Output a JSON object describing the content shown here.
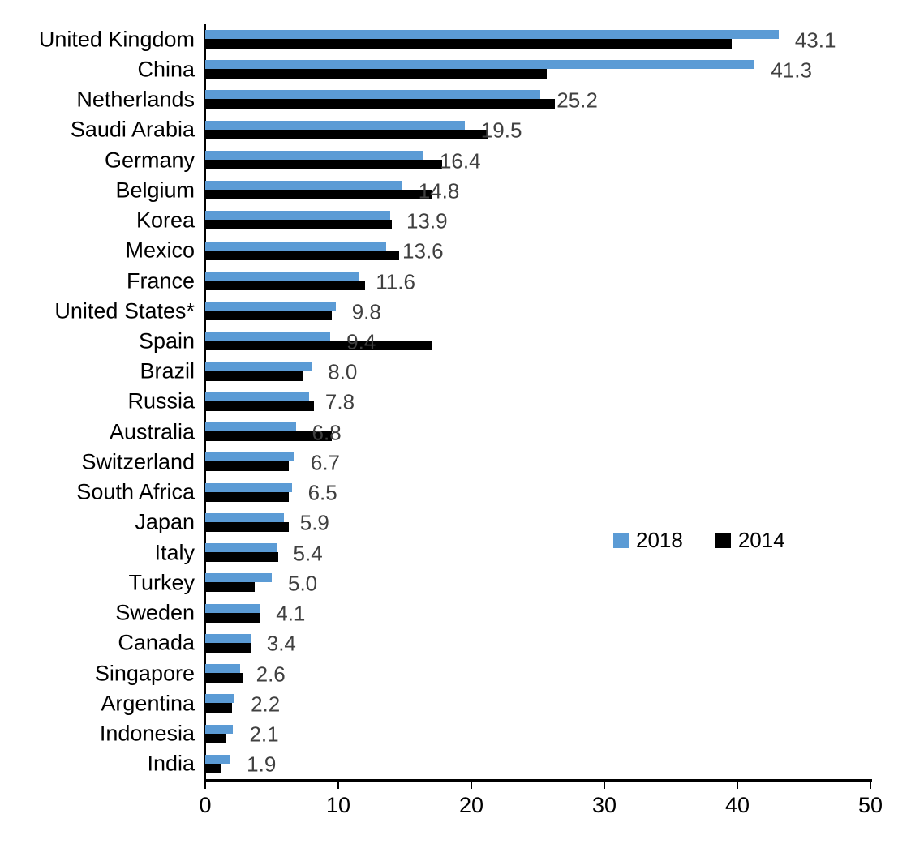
{
  "colors": {
    "series_2018": "#5B9BD5",
    "series_2014": "#000000",
    "value_label": "#404040",
    "axis": "#000000",
    "background": "#FFFFFF"
  },
  "legend": {
    "items": [
      {
        "label": "2018",
        "color": "#5B9BD5"
      },
      {
        "label": "2014",
        "color": "#000000"
      }
    ]
  },
  "chart_data": {
    "type": "bar",
    "orientation": "horizontal",
    "title": "",
    "xlabel": "",
    "ylabel": "",
    "xlim": [
      0,
      50
    ],
    "x_ticks": [
      0,
      10,
      20,
      30,
      40,
      50
    ],
    "grid": false,
    "legend_position": "middle-right",
    "categories": [
      "United Kingdom",
      "China",
      "Netherlands",
      "Saudi Arabia",
      "Germany",
      "Belgium",
      "Korea",
      "Mexico",
      "France",
      "United States*",
      "Spain",
      "Brazil",
      "Russia",
      "Australia",
      "Switzerland",
      "South Africa",
      "Japan",
      "Italy",
      "Turkey",
      "Sweden",
      "Canada",
      "Singapore",
      "Argentina",
      "Indonesia",
      "India"
    ],
    "series": [
      {
        "name": "2018",
        "color": "#5B9BD5",
        "values": [
          43.1,
          41.3,
          25.2,
          19.5,
          16.4,
          14.8,
          13.9,
          13.6,
          11.6,
          9.8,
          9.4,
          8.0,
          7.8,
          6.8,
          6.7,
          6.5,
          5.9,
          5.4,
          5.0,
          4.1,
          3.4,
          2.6,
          2.2,
          2.1,
          1.9
        ]
      },
      {
        "name": "2014",
        "color": "#000000",
        "values": [
          39.6,
          25.7,
          26.3,
          21.3,
          17.8,
          17.0,
          14.0,
          14.6,
          12.0,
          9.5,
          17.1,
          7.3,
          8.2,
          9.5,
          6.3,
          6.3,
          6.3,
          5.5,
          3.7,
          4.1,
          3.4,
          2.8,
          2.0,
          1.6,
          1.2
        ]
      }
    ],
    "data_labels": [
      "43.1",
      "41.3",
      "25.2",
      "19.5",
      "16.4",
      "14.8",
      "13.9",
      "13.6",
      "11.6",
      "9.8",
      "9.4",
      "8.0",
      "7.8",
      "6.8",
      "6.7",
      "6.5",
      "5.9",
      "5.4",
      "5.0",
      "4.1",
      "3.4",
      "2.6",
      "2.2",
      "2.1",
      "1.9"
    ],
    "data_labels_series": "2018"
  }
}
